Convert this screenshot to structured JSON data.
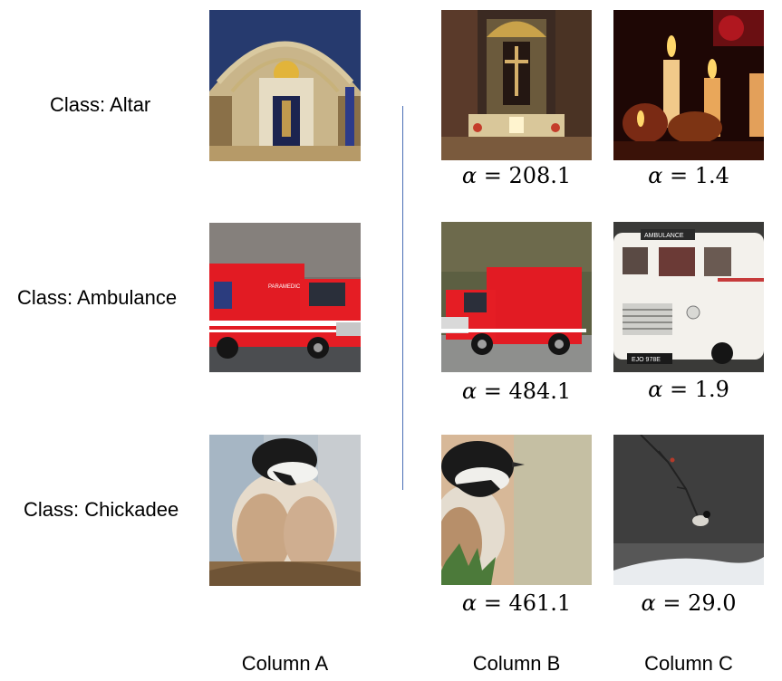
{
  "rows": [
    {
      "class_label": "Class: Altar",
      "image_a": "altar-image",
      "image_b": "altar-image",
      "image_c": "candles-image",
      "alpha_b": "208.1",
      "alpha_c": "1.4"
    },
    {
      "class_label": "Class: Ambulance",
      "image_a": "ambulance-image",
      "image_b": "ambulance-image",
      "image_c": "vintage-ambulance-image",
      "alpha_b": "484.1",
      "alpha_c": "1.9"
    },
    {
      "class_label": "Class: Chickadee",
      "image_a": "chickadee-image",
      "image_b": "chickadee-image",
      "image_c": "bird-on-branch-image",
      "alpha_b": "461.1",
      "alpha_c": "29.0"
    }
  ],
  "alpha_symbol": "α",
  "equals": " = ",
  "columns": {
    "a": "Column A",
    "b": "Column B",
    "c": "Column C"
  },
  "ambulance_text": {
    "side": "PARAMEDIC",
    "banner": "AMBULANCE",
    "plate": "EJO 978E"
  }
}
